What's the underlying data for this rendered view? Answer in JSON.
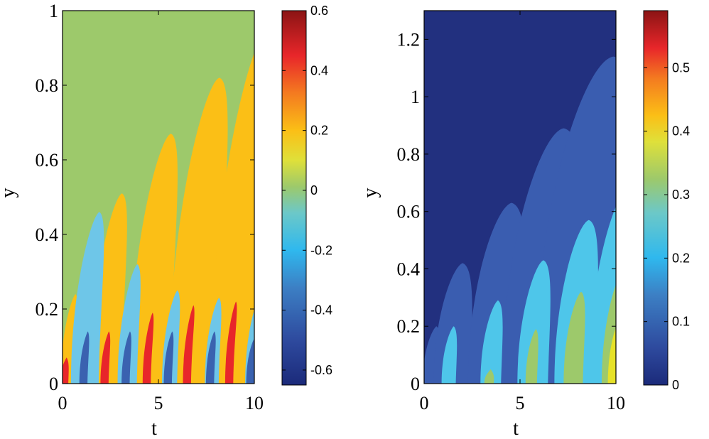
{
  "chart_data": [
    {
      "type": "heatmap",
      "xlabel": "t",
      "ylabel": "y",
      "xlim": [
        0,
        10
      ],
      "ylim": [
        0,
        1
      ],
      "x_ticks": [
        "0",
        "5",
        "10"
      ],
      "y_ticks": [
        "0",
        "0.2",
        "0.4",
        "0.6",
        "0.8",
        "1"
      ],
      "colorbar": {
        "range": [
          -0.65,
          0.6
        ],
        "ticks": [
          "-0.6",
          "-0.4",
          "-0.2",
          "0",
          "0.2",
          "0.4",
          "0.6"
        ],
        "colormap": "jet"
      },
      "background_value": 0,
      "background_color": "#9dc96b",
      "features": [
        {
          "kind": "positive-plume",
          "t": 0.3,
          "peak_y": 0.24,
          "value": 0.2,
          "color": "#fbbf16"
        },
        {
          "kind": "positive-plume",
          "t": 2.3,
          "peak_y": 0.51,
          "value": 0.2,
          "color": "#fbbf16"
        },
        {
          "kind": "positive-plume",
          "t": 4.6,
          "peak_y": 0.67,
          "value": 0.2,
          "color": "#fbbf16"
        },
        {
          "kind": "positive-plume",
          "t": 6.9,
          "peak_y": 0.82,
          "value": 0.2,
          "color": "#fbbf16"
        },
        {
          "kind": "positive-plume",
          "t": 9.3,
          "peak_y": 0.96,
          "value": 0.2,
          "color": "#fbbf16"
        },
        {
          "kind": "strong-positive",
          "t": 0.1,
          "peak_y": 0.07,
          "value": 0.5,
          "color": "#e8262a"
        },
        {
          "kind": "strong-positive",
          "t": 2.2,
          "peak_y": 0.14,
          "value": 0.5,
          "color": "#e8262a"
        },
        {
          "kind": "strong-positive",
          "t": 4.4,
          "peak_y": 0.19,
          "value": 0.5,
          "color": "#e8262a"
        },
        {
          "kind": "strong-positive",
          "t": 6.5,
          "peak_y": 0.21,
          "value": 0.5,
          "color": "#e8262a"
        },
        {
          "kind": "strong-positive",
          "t": 8.7,
          "peak_y": 0.22,
          "value": 0.5,
          "color": "#e8262a"
        },
        {
          "kind": "negative-plume",
          "t": 1.2,
          "peak_y": 0.46,
          "value": -0.2,
          "color": "#6ec6e8"
        },
        {
          "kind": "negative-plume",
          "t": 3.4,
          "peak_y": 0.32,
          "value": -0.2,
          "color": "#6ec6e8"
        },
        {
          "kind": "negative-plume",
          "t": 5.6,
          "peak_y": 0.25,
          "value": -0.2,
          "color": "#6ec6e8"
        },
        {
          "kind": "negative-plume",
          "t": 7.8,
          "peak_y": 0.23,
          "value": -0.2,
          "color": "#6ec6e8"
        },
        {
          "kind": "negative-plume",
          "t": 9.9,
          "peak_y": 0.23,
          "value": -0.2,
          "color": "#6ec6e8"
        },
        {
          "kind": "strong-negative",
          "t": 1.1,
          "peak_y": 0.14,
          "value": -0.45,
          "color": "#3a62b0"
        },
        {
          "kind": "strong-negative",
          "t": 3.3,
          "peak_y": 0.14,
          "value": -0.45,
          "color": "#3a62b0"
        },
        {
          "kind": "strong-negative",
          "t": 5.5,
          "peak_y": 0.14,
          "value": -0.45,
          "color": "#3a62b0"
        },
        {
          "kind": "strong-negative",
          "t": 7.7,
          "peak_y": 0.14,
          "value": -0.45,
          "color": "#3a62b0"
        },
        {
          "kind": "strong-negative",
          "t": 9.8,
          "peak_y": 0.12,
          "value": -0.45,
          "color": "#3a62b0"
        }
      ]
    },
    {
      "type": "heatmap",
      "xlabel": "t",
      "ylabel": "y",
      "xlim": [
        0,
        10
      ],
      "ylim": [
        0,
        1.3
      ],
      "x_ticks": [
        "0",
        "5",
        "10"
      ],
      "y_ticks": [
        "0",
        "0.2",
        "0.4",
        "0.6",
        "0.8",
        "1",
        "1.2"
      ],
      "colorbar": {
        "range": [
          0,
          0.59
        ],
        "ticks": [
          "0",
          "0.1",
          "0.2",
          "0.3",
          "0.4",
          "0.5"
        ],
        "colormap": "jet"
      },
      "background_value": 0.02,
      "background_color": "#22307f",
      "features": [
        {
          "kind": "low-band",
          "t": 0.4,
          "peak_y": 0.2,
          "value": 0.08,
          "color": "#3a5db0"
        },
        {
          "kind": "low-band",
          "t": 1.5,
          "peak_y": 0.42,
          "value": 0.08,
          "color": "#3a5db0"
        },
        {
          "kind": "low-band",
          "t": 3.8,
          "peak_y": 0.63,
          "value": 0.08,
          "color": "#3a5db0"
        },
        {
          "kind": "low-band",
          "t": 6.2,
          "peak_y": 0.89,
          "value": 0.08,
          "color": "#3a5db0"
        },
        {
          "kind": "low-band",
          "t": 8.5,
          "peak_y": 1.14,
          "value": 0.08,
          "color": "#3a5db0"
        },
        {
          "kind": "mid-band",
          "t": 1.3,
          "peak_y": 0.2,
          "value": 0.2,
          "color": "#4ec6ea"
        },
        {
          "kind": "mid-band",
          "t": 3.5,
          "peak_y": 0.29,
          "value": 0.2,
          "color": "#4ec6ea"
        },
        {
          "kind": "mid-band",
          "t": 5.7,
          "peak_y": 0.43,
          "value": 0.2,
          "color": "#4ec6ea"
        },
        {
          "kind": "mid-band",
          "t": 7.9,
          "peak_y": 0.57,
          "value": 0.2,
          "color": "#4ec6ea"
        },
        {
          "kind": "mid-band",
          "t": 9.9,
          "peak_y": 0.69,
          "value": 0.2,
          "color": "#4ec6ea"
        },
        {
          "kind": "high-band",
          "t": 3.4,
          "peak_y": 0.05,
          "value": 0.3,
          "color": "#9dc96b"
        },
        {
          "kind": "high-band",
          "t": 5.6,
          "peak_y": 0.19,
          "value": 0.3,
          "color": "#9dc96b"
        },
        {
          "kind": "high-band",
          "t": 7.8,
          "peak_y": 0.32,
          "value": 0.3,
          "color": "#9dc96b"
        },
        {
          "kind": "high-band",
          "t": 9.9,
          "peak_y": 0.39,
          "value": 0.3,
          "color": "#9dc96b"
        },
        {
          "kind": "peak",
          "t": 9.8,
          "peak_y": 0.2,
          "value": 0.4,
          "color": "#e6e128"
        }
      ]
    }
  ]
}
